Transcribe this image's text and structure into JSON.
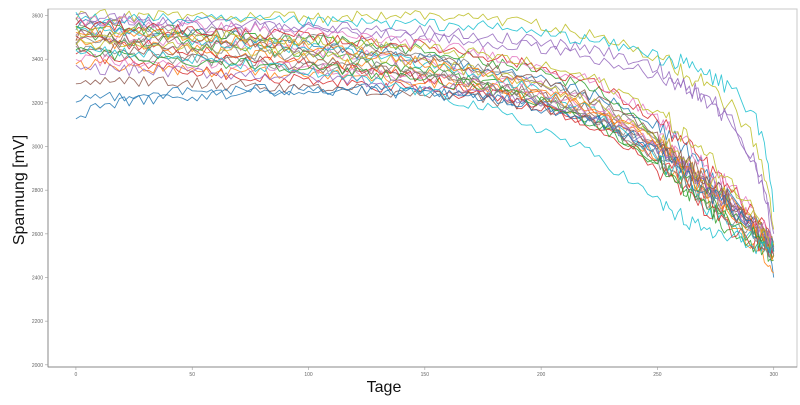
{
  "chart_data": {
    "type": "line",
    "title": "",
    "xlabel": "Tage",
    "ylabel": "Spannung [mV]",
    "xlim": [
      -12,
      310
    ],
    "ylim": [
      1990,
      3630
    ],
    "x_ticks": [
      0,
      50,
      100,
      150,
      200,
      250,
      300
    ],
    "x_tick_labels": [
      "0",
      "50",
      "100",
      "150",
      "200",
      "250",
      "300"
    ],
    "y_ticks": [
      2000,
      2200,
      2400,
      2600,
      2800,
      3000,
      3200,
      3400,
      3600
    ],
    "y_tick_labels": [
      "2000",
      "2200",
      "2400",
      "2600",
      "2800",
      "3000",
      "3200",
      "3400",
      "3600"
    ],
    "grid": false,
    "legend": "none",
    "x": [
      0,
      25,
      50,
      75,
      100,
      125,
      150,
      175,
      200,
      225,
      250,
      265,
      280,
      290,
      296,
      300
    ],
    "series": [
      {
        "color": "#1f77b4",
        "values": [
          3560,
          3540,
          3520,
          3500,
          3470,
          3440,
          3400,
          3360,
          3300,
          3230,
          3100,
          2960,
          2790,
          2660,
          2560,
          2400
        ]
      },
      {
        "color": "#ff7f0e",
        "values": [
          3480,
          3460,
          3440,
          3420,
          3400,
          3370,
          3330,
          3280,
          3210,
          3120,
          2960,
          2820,
          2680,
          2560,
          2480,
          2420
        ]
      },
      {
        "color": "#2ca02c",
        "values": [
          3510,
          3490,
          3470,
          3450,
          3420,
          3390,
          3350,
          3300,
          3220,
          3110,
          2930,
          2780,
          2620,
          2540,
          2520,
          2480
        ]
      },
      {
        "color": "#d62728",
        "values": [
          3420,
          3390,
          3350,
          3320,
          3300,
          3280,
          3260,
          3230,
          3180,
          3100,
          2950,
          2830,
          2720,
          2640,
          2580,
          2520
        ]
      },
      {
        "color": "#9467bd",
        "values": [
          3580,
          3570,
          3560,
          3550,
          3540,
          3520,
          3500,
          3480,
          3450,
          3400,
          3330,
          3260,
          3150,
          2980,
          2800,
          2600
        ]
      },
      {
        "color": "#8c564b",
        "values": [
          3460,
          3440,
          3410,
          3390,
          3370,
          3350,
          3320,
          3290,
          3240,
          3160,
          3010,
          2880,
          2740,
          2640,
          2580,
          2500
        ]
      },
      {
        "color": "#e377c2",
        "values": [
          3520,
          3500,
          3480,
          3460,
          3440,
          3420,
          3380,
          3340,
          3280,
          3190,
          3040,
          2900,
          2760,
          2660,
          2590,
          2520
        ]
      },
      {
        "color": "#7f7f7f",
        "values": [
          3440,
          3420,
          3400,
          3390,
          3370,
          3350,
          3320,
          3280,
          3220,
          3140,
          2990,
          2860,
          2720,
          2620,
          2560,
          2500
        ]
      },
      {
        "color": "#bcbd22",
        "values": [
          3600,
          3600,
          3600,
          3590,
          3590,
          3600,
          3600,
          3590,
          3560,
          3500,
          3410,
          3320,
          3200,
          3050,
          2880,
          2620
        ]
      },
      {
        "color": "#17becf",
        "values": [
          3530,
          3510,
          3490,
          3470,
          3450,
          3420,
          3380,
          3320,
          3250,
          3150,
          2960,
          2790,
          2640,
          2580,
          2560,
          2520
        ]
      },
      {
        "color": "#1f77b4",
        "values": [
          3150,
          3210,
          3230,
          3250,
          3260,
          3260,
          3250,
          3230,
          3190,
          3120,
          2990,
          2870,
          2740,
          2650,
          2600,
          2540
        ]
      },
      {
        "color": "#ff7f0e",
        "values": [
          3380,
          3370,
          3350,
          3340,
          3330,
          3320,
          3300,
          3270,
          3230,
          3160,
          3020,
          2900,
          2760,
          2660,
          2600,
          2540
        ]
      },
      {
        "color": "#2ca02c",
        "values": [
          3550,
          3540,
          3530,
          3510,
          3490,
          3470,
          3440,
          3400,
          3340,
          3250,
          3060,
          2860,
          2700,
          2600,
          2560,
          2500
        ]
      },
      {
        "color": "#d62728",
        "values": [
          3500,
          3470,
          3440,
          3410,
          3380,
          3350,
          3310,
          3260,
          3190,
          3090,
          2900,
          2760,
          2640,
          2580,
          2550,
          2520
        ]
      },
      {
        "color": "#9467bd",
        "values": [
          3590,
          3580,
          3570,
          3560,
          3550,
          3540,
          3530,
          3510,
          3480,
          3440,
          3360,
          3270,
          3140,
          2960,
          2780,
          2560
        ]
      },
      {
        "color": "#8c564b",
        "values": [
          3300,
          3300,
          3290,
          3280,
          3270,
          3260,
          3240,
          3220,
          3180,
          3120,
          3000,
          2880,
          2760,
          2660,
          2600,
          2540
        ]
      },
      {
        "color": "#e377c2",
        "values": [
          3400,
          3390,
          3380,
          3370,
          3360,
          3340,
          3320,
          3290,
          3240,
          3160,
          3020,
          2890,
          2760,
          2660,
          2600,
          2540
        ]
      },
      {
        "color": "#7f7f7f",
        "values": [
          3570,
          3550,
          3530,
          3510,
          3490,
          3460,
          3420,
          3370,
          3300,
          3200,
          3030,
          2880,
          2740,
          2640,
          2580,
          2520
        ]
      },
      {
        "color": "#bcbd22",
        "values": [
          3470,
          3460,
          3450,
          3440,
          3430,
          3410,
          3380,
          3340,
          3280,
          3190,
          3040,
          2910,
          2780,
          2680,
          2620,
          2550
        ]
      },
      {
        "color": "#17becf",
        "values": [
          3590,
          3585,
          3580,
          3575,
          3570,
          3565,
          3560,
          3550,
          3520,
          3480,
          3420,
          3360,
          3280,
          3180,
          3000,
          2700
        ]
      },
      {
        "color": "#1f77b4",
        "values": [
          3220,
          3240,
          3250,
          3260,
          3260,
          3250,
          3240,
          3220,
          3180,
          3110,
          2980,
          2850,
          2720,
          2630,
          2580,
          2520
        ]
      },
      {
        "color": "#ff7f0e",
        "values": [
          3540,
          3520,
          3500,
          3480,
          3460,
          3430,
          3390,
          3340,
          3270,
          3170,
          3000,
          2850,
          2710,
          2620,
          2570,
          2510
        ]
      },
      {
        "color": "#2ca02c",
        "values": [
          3430,
          3410,
          3390,
          3380,
          3360,
          3340,
          3310,
          3270,
          3200,
          3100,
          2920,
          2780,
          2660,
          2600,
          2570,
          2520
        ]
      },
      {
        "color": "#d62728",
        "values": [
          3560,
          3550,
          3530,
          3520,
          3500,
          3480,
          3460,
          3420,
          3360,
          3280,
          3120,
          2980,
          2820,
          2700,
          2620,
          2540
        ]
      },
      {
        "color": "#9467bd",
        "values": [
          3360,
          3350,
          3340,
          3330,
          3320,
          3300,
          3280,
          3250,
          3200,
          3130,
          2990,
          2870,
          2750,
          2660,
          2600,
          2530
        ]
      },
      {
        "color": "#8c564b",
        "values": [
          3510,
          3500,
          3490,
          3470,
          3450,
          3430,
          3400,
          3360,
          3300,
          3210,
          3050,
          2910,
          2770,
          2670,
          2600,
          2530
        ]
      },
      {
        "color": "#e377c2",
        "values": [
          3580,
          3570,
          3550,
          3540,
          3520,
          3500,
          3470,
          3430,
          3370,
          3290,
          3130,
          2990,
          2830,
          2700,
          2620,
          2540
        ]
      },
      {
        "color": "#7f7f7f",
        "values": [
          3490,
          3470,
          3450,
          3430,
          3410,
          3380,
          3340,
          3290,
          3220,
          3120,
          2950,
          2810,
          2680,
          2600,
          2560,
          2500
        ]
      },
      {
        "color": "#bcbd22",
        "values": [
          3530,
          3520,
          3510,
          3500,
          3490,
          3470,
          3450,
          3420,
          3370,
          3300,
          3160,
          3020,
          2860,
          2720,
          2630,
          2550
        ]
      },
      {
        "color": "#17becf",
        "values": [
          3450,
          3430,
          3400,
          3370,
          3340,
          3300,
          3250,
          3180,
          3080,
          2950,
          2750,
          2640,
          2580,
          2560,
          2540,
          2520
        ]
      }
    ]
  }
}
